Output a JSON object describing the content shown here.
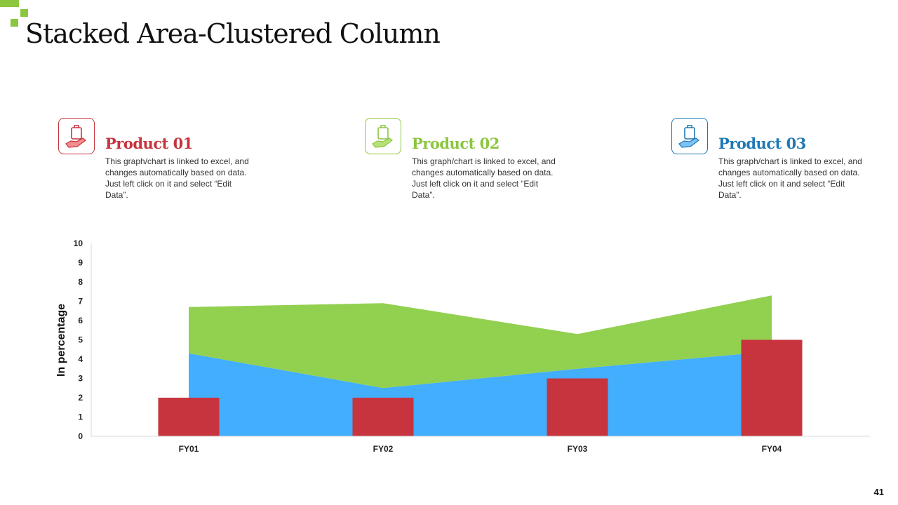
{
  "title": "Stacked Area-Clustered Column",
  "page_number": "41",
  "colors": {
    "accent": "#8cc63f",
    "red": "#c7343e",
    "green": "#92d050",
    "blue": "#42aefd"
  },
  "products": [
    {
      "name": "Product 01",
      "description": "This graph/chart is linked to excel, and changes automatically based on data. Just left click on it and select “Edit Data”.",
      "color": "#c7343e",
      "icon": "hand-bag-icon"
    },
    {
      "name": "Product 02",
      "description": "This graph/chart is linked to excel, and changes automatically based on data. Just left click on it and select “Edit Data”.",
      "color": "#8cc63f",
      "icon": "hand-bag-icon"
    },
    {
      "name": "Product 03",
      "description": "This graph/chart is linked to excel, and changes automatically based on data. Just left click on it and select “Edit Data”.",
      "color": "#1f78b4",
      "icon": "hand-bag-icon"
    }
  ],
  "chart_data": {
    "type": "area",
    "categories": [
      "FY01",
      "FY02",
      "FY03",
      "FY04"
    ],
    "ylabel": "In percentage",
    "ylim": [
      0,
      10
    ],
    "yticks": [
      0,
      1,
      2,
      3,
      4,
      5,
      6,
      7,
      8,
      9,
      10
    ],
    "grid": false,
    "series": [
      {
        "kind": "area",
        "values": [
          4.3,
          2.5,
          3.5,
          4.4
        ],
        "color": "#42aefd"
      },
      {
        "kind": "area",
        "values": [
          2.4,
          4.4,
          1.8,
          2.9
        ],
        "color": "#92d050"
      },
      {
        "kind": "column",
        "values": [
          2,
          2,
          3,
          5
        ],
        "color": "#c7343e"
      }
    ]
  }
}
